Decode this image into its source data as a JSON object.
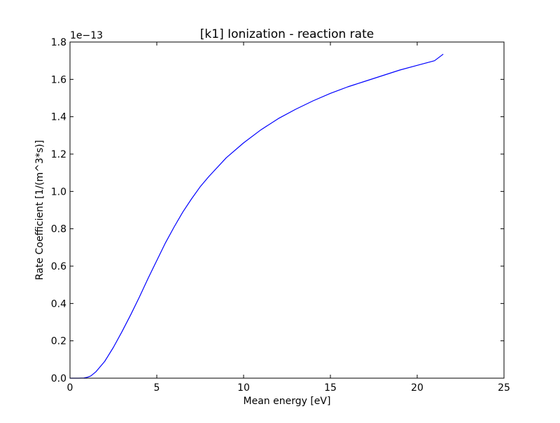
{
  "chart_data": {
    "type": "line",
    "title": "[k1] Ionization - reaction rate",
    "xlabel": "Mean energy [eV]",
    "ylabel": "Rate Coefficient [1/(m^3*s)]",
    "y_offset_label": "1e−13",
    "y_scale_exponent": -13,
    "xlim": [
      0,
      25
    ],
    "ylim": [
      0,
      1.8
    ],
    "x_ticks": [
      0,
      5,
      10,
      15,
      20,
      25
    ],
    "x_tick_labels": [
      "0",
      "5",
      "10",
      "15",
      "20",
      "25"
    ],
    "y_ticks": [
      0.0,
      0.2,
      0.4,
      0.6,
      0.8,
      1.0,
      1.2,
      1.4,
      1.6,
      1.8
    ],
    "y_tick_labels": [
      "0.0",
      "0.2",
      "0.4",
      "0.6",
      "0.8",
      "1.0",
      "1.2",
      "1.4",
      "1.6",
      "1.8"
    ],
    "grid": false,
    "legend": "none",
    "series": [
      {
        "color": "#0000ff",
        "x": [
          0.0,
          0.5,
          0.8,
          1.0,
          1.2,
          1.5,
          2.0,
          2.5,
          3.0,
          3.5,
          4.0,
          4.5,
          5.0,
          5.5,
          6.0,
          6.5,
          7.0,
          7.5,
          8.0,
          9.0,
          10.0,
          11.0,
          12.0,
          13.0,
          14.0,
          15.0,
          16.0,
          17.0,
          18.0,
          19.0,
          20.0,
          21.0,
          21.5
        ],
        "y": [
          0.0,
          0.0,
          0.001,
          0.005,
          0.012,
          0.035,
          0.09,
          0.165,
          0.25,
          0.34,
          0.435,
          0.535,
          0.63,
          0.725,
          0.81,
          0.89,
          0.96,
          1.025,
          1.08,
          1.18,
          1.26,
          1.33,
          1.39,
          1.44,
          1.485,
          1.525,
          1.56,
          1.59,
          1.62,
          1.65,
          1.675,
          1.7,
          1.735
        ]
      }
    ]
  }
}
